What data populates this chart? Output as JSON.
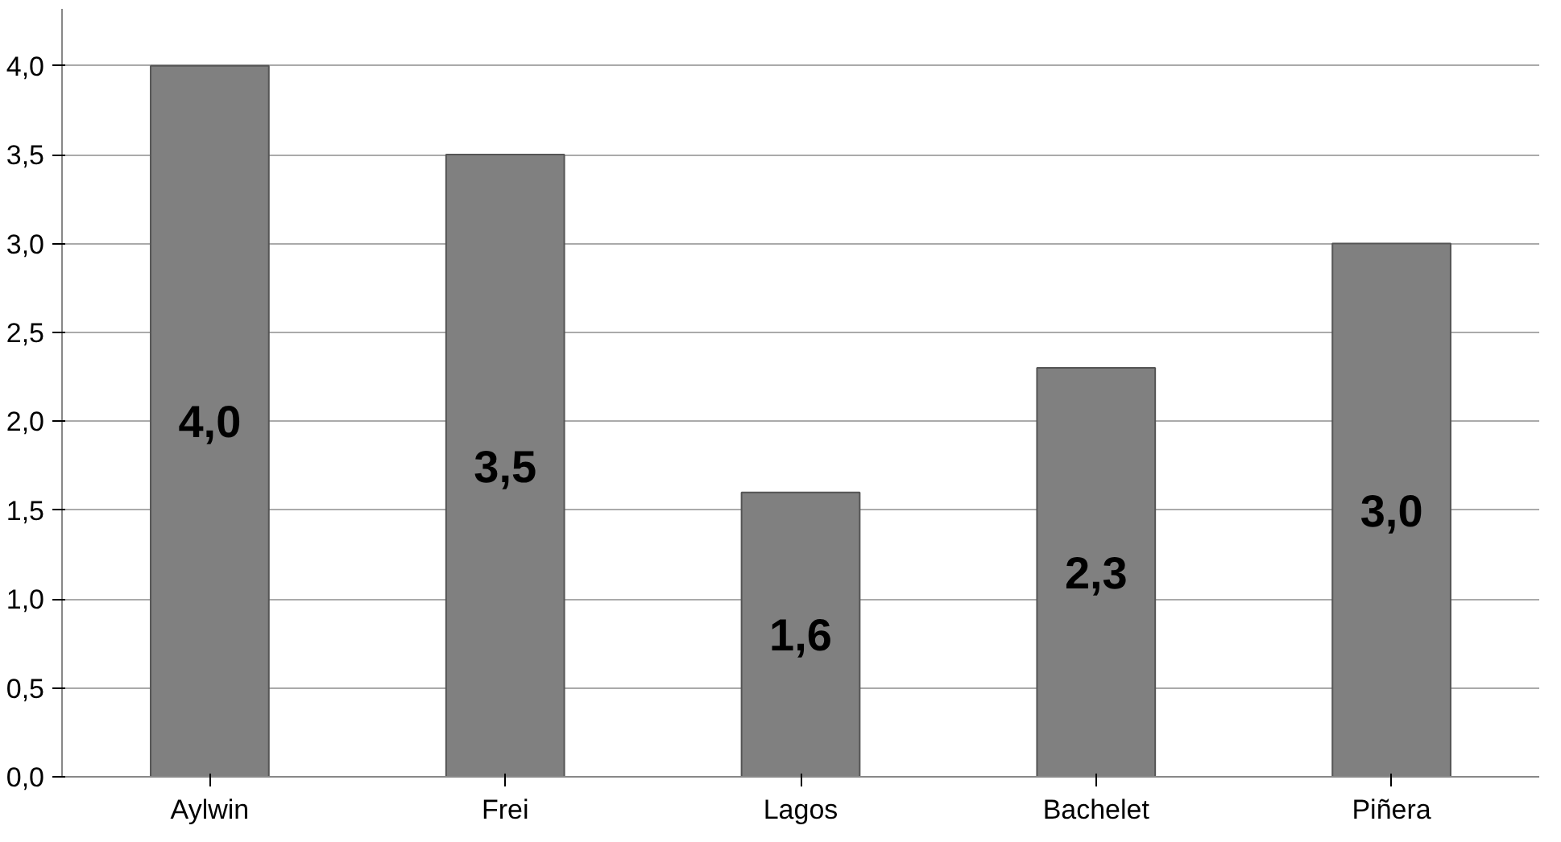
{
  "chart_data": {
    "type": "bar",
    "categories": [
      "Aylwin",
      "Frei",
      "Lagos",
      "Bachelet",
      "Piñera"
    ],
    "values": [
      4.0,
      3.5,
      1.6,
      2.3,
      3.0
    ],
    "value_labels": [
      "4,0",
      "3,5",
      "1,6",
      "2,3",
      "3,0"
    ],
    "color": "#808080",
    "ylim": [
      0,
      4.0
    ],
    "yticks": [
      {
        "value": 0,
        "label": "0,0"
      },
      {
        "value": 0.5,
        "label": "0,5"
      },
      {
        "value": 1.0,
        "label": "1,0"
      },
      {
        "value": 1.5,
        "label": "1,5"
      },
      {
        "value": 2.0,
        "label": "2,0"
      },
      {
        "value": 2.5,
        "label": "2,5"
      },
      {
        "value": 3.0,
        "label": "3,0"
      },
      {
        "value": 3.5,
        "label": "3,5"
      },
      {
        "value": 4.0,
        "label": "4,0"
      }
    ],
    "grid": "y"
  }
}
